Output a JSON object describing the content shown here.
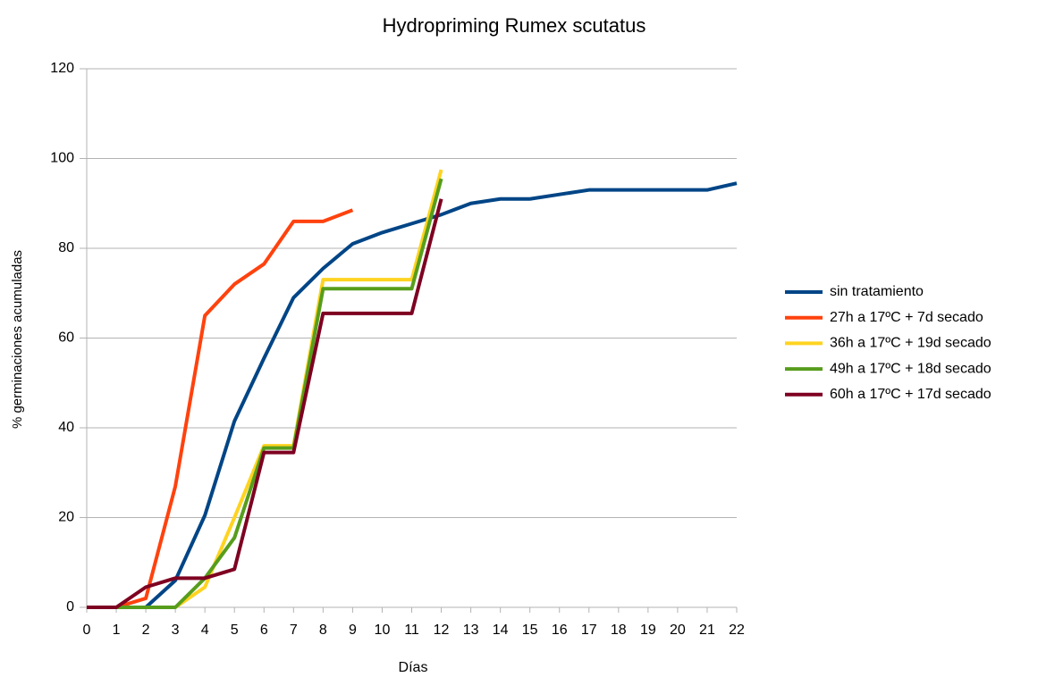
{
  "chart_data": {
    "type": "line",
    "title": "Hydropriming Rumex scutatus",
    "xlabel": "Días",
    "ylabel": "% germinaciones acumuladas",
    "x": [
      0,
      1,
      2,
      3,
      4,
      5,
      6,
      7,
      8,
      9,
      10,
      11,
      12,
      13,
      14,
      15,
      16,
      17,
      18,
      19,
      20,
      21,
      22
    ],
    "xlim": [
      0,
      22
    ],
    "xticks": [
      0,
      1,
      2,
      3,
      4,
      5,
      6,
      7,
      8,
      9,
      10,
      11,
      12,
      13,
      14,
      15,
      16,
      17,
      18,
      19,
      20,
      21,
      22
    ],
    "ylim": [
      0,
      120
    ],
    "yticks": [
      0,
      20,
      40,
      60,
      80,
      100,
      120
    ],
    "grid": true,
    "legend": "right",
    "series": [
      {
        "name": "sin tratamiento",
        "color": "#004586",
        "values": [
          0,
          0,
          0,
          6,
          20.5,
          41.5,
          55.5,
          69,
          75.5,
          81,
          83.5,
          85.5,
          87.5,
          90,
          91,
          91,
          92,
          93,
          93,
          93,
          93,
          93,
          94.5
        ]
      },
      {
        "name": "27h a 17ºC + 7d secado",
        "color": "#ff420e",
        "values": [
          0,
          0,
          2,
          27,
          65,
          72,
          76.5,
          86,
          86,
          88.5,
          null,
          null,
          null,
          null,
          null,
          null,
          null,
          null,
          null,
          null,
          null,
          null,
          null
        ]
      },
      {
        "name": "36h a 17ºC + 19d secado",
        "color": "#ffd320",
        "values": [
          0,
          0,
          0,
          0,
          4.5,
          20,
          36,
          36,
          73,
          73,
          73,
          73,
          97.5,
          null,
          null,
          null,
          null,
          null,
          null,
          null,
          null,
          null,
          null
        ]
      },
      {
        "name": "49h a 17ºC + 18d secado",
        "color": "#579d1c",
        "values": [
          0,
          0,
          0,
          0,
          6.5,
          15.5,
          35.5,
          35.5,
          71,
          71,
          71,
          71,
          95.5,
          null,
          null,
          null,
          null,
          null,
          null,
          null,
          null,
          null,
          null
        ]
      },
      {
        "name": "60h a 17ºC + 17d secado",
        "color": "#7e0021",
        "values": [
          0,
          0,
          4.5,
          6.5,
          6.5,
          8.5,
          34.5,
          34.5,
          65.5,
          65.5,
          65.5,
          65.5,
          91,
          null,
          null,
          null,
          null,
          null,
          null,
          null,
          null,
          null,
          null
        ]
      }
    ]
  }
}
